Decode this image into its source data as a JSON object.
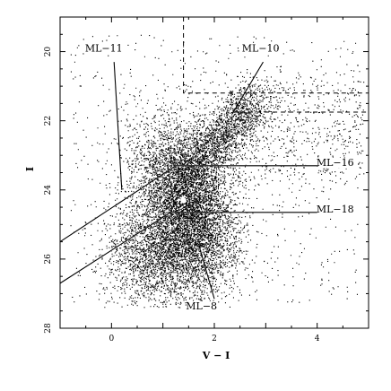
{
  "chart_data": {
    "type": "scatter",
    "title": "",
    "xlabel": "V − I",
    "ylabel": "I",
    "xlim": [
      -1,
      5
    ],
    "ylim": [
      28,
      19
    ],
    "y_inverted": true,
    "x_ticks": [
      0,
      2,
      4
    ],
    "x_tick_labels": [
      "0",
      "2",
      "4"
    ],
    "y_ticks": [
      20,
      22,
      24,
      26,
      28
    ],
    "y_tick_labels": [
      "20",
      "22",
      "24",
      "26",
      "28"
    ],
    "grid": false,
    "legend": "none",
    "point_color": "#000000",
    "point_cloud": {
      "description_density": "dense cloud of individual stars",
      "core_center": [
        1.5,
        24.3
      ],
      "upper_branch_toward": [
        2.6,
        21.5
      ],
      "lower_extension_toward": [
        0.8,
        26.5
      ]
    },
    "regions": [
      {
        "name": "ML−11",
        "label_text": "ML−11",
        "label_at": [
          -0.15,
          20.0
        ],
        "pointer_from": [
          0.05,
          20.3
        ],
        "pointer_to": [
          0.2,
          24.0
        ]
      },
      {
        "name": "ML−10",
        "label_text": "ML−10",
        "label_at": [
          2.9,
          20.0
        ],
        "pointer_from": [
          2.95,
          20.3
        ],
        "pointer_to": [
          2.35,
          21.8
        ]
      },
      {
        "name": "ML−16",
        "label_text": "ML−16",
        "label_at": [
          4.35,
          23.3
        ],
        "boundary": [
          [
            -1.0,
            25.5
          ],
          [
            1.25,
            23.3
          ],
          [
            4.0,
            23.3
          ]
        ]
      },
      {
        "name": "ML−18",
        "label_text": "ML−18",
        "label_at": [
          4.35,
          24.65
        ],
        "boundary": [
          [
            -1.0,
            26.7
          ],
          [
            1.15,
            24.65
          ],
          [
            4.0,
            24.65
          ]
        ]
      },
      {
        "name": "ML−8",
        "label_text": "ML−8",
        "label_at": [
          1.75,
          27.45
        ],
        "pointer_from": [
          2.0,
          27.15
        ],
        "pointer_to": [
          1.7,
          25.6
        ]
      }
    ],
    "dashed_boundaries": [
      {
        "points": [
          [
            1.4,
            19.0
          ],
          [
            1.4,
            21.2
          ],
          [
            5.0,
            21.2
          ]
        ]
      },
      {
        "points": [
          [
            2.35,
            21.75
          ],
          [
            5.0,
            21.75
          ]
        ]
      }
    ],
    "highlight_point": {
      "x": 1.4,
      "y": 24.3,
      "color": "#ffffff"
    }
  }
}
